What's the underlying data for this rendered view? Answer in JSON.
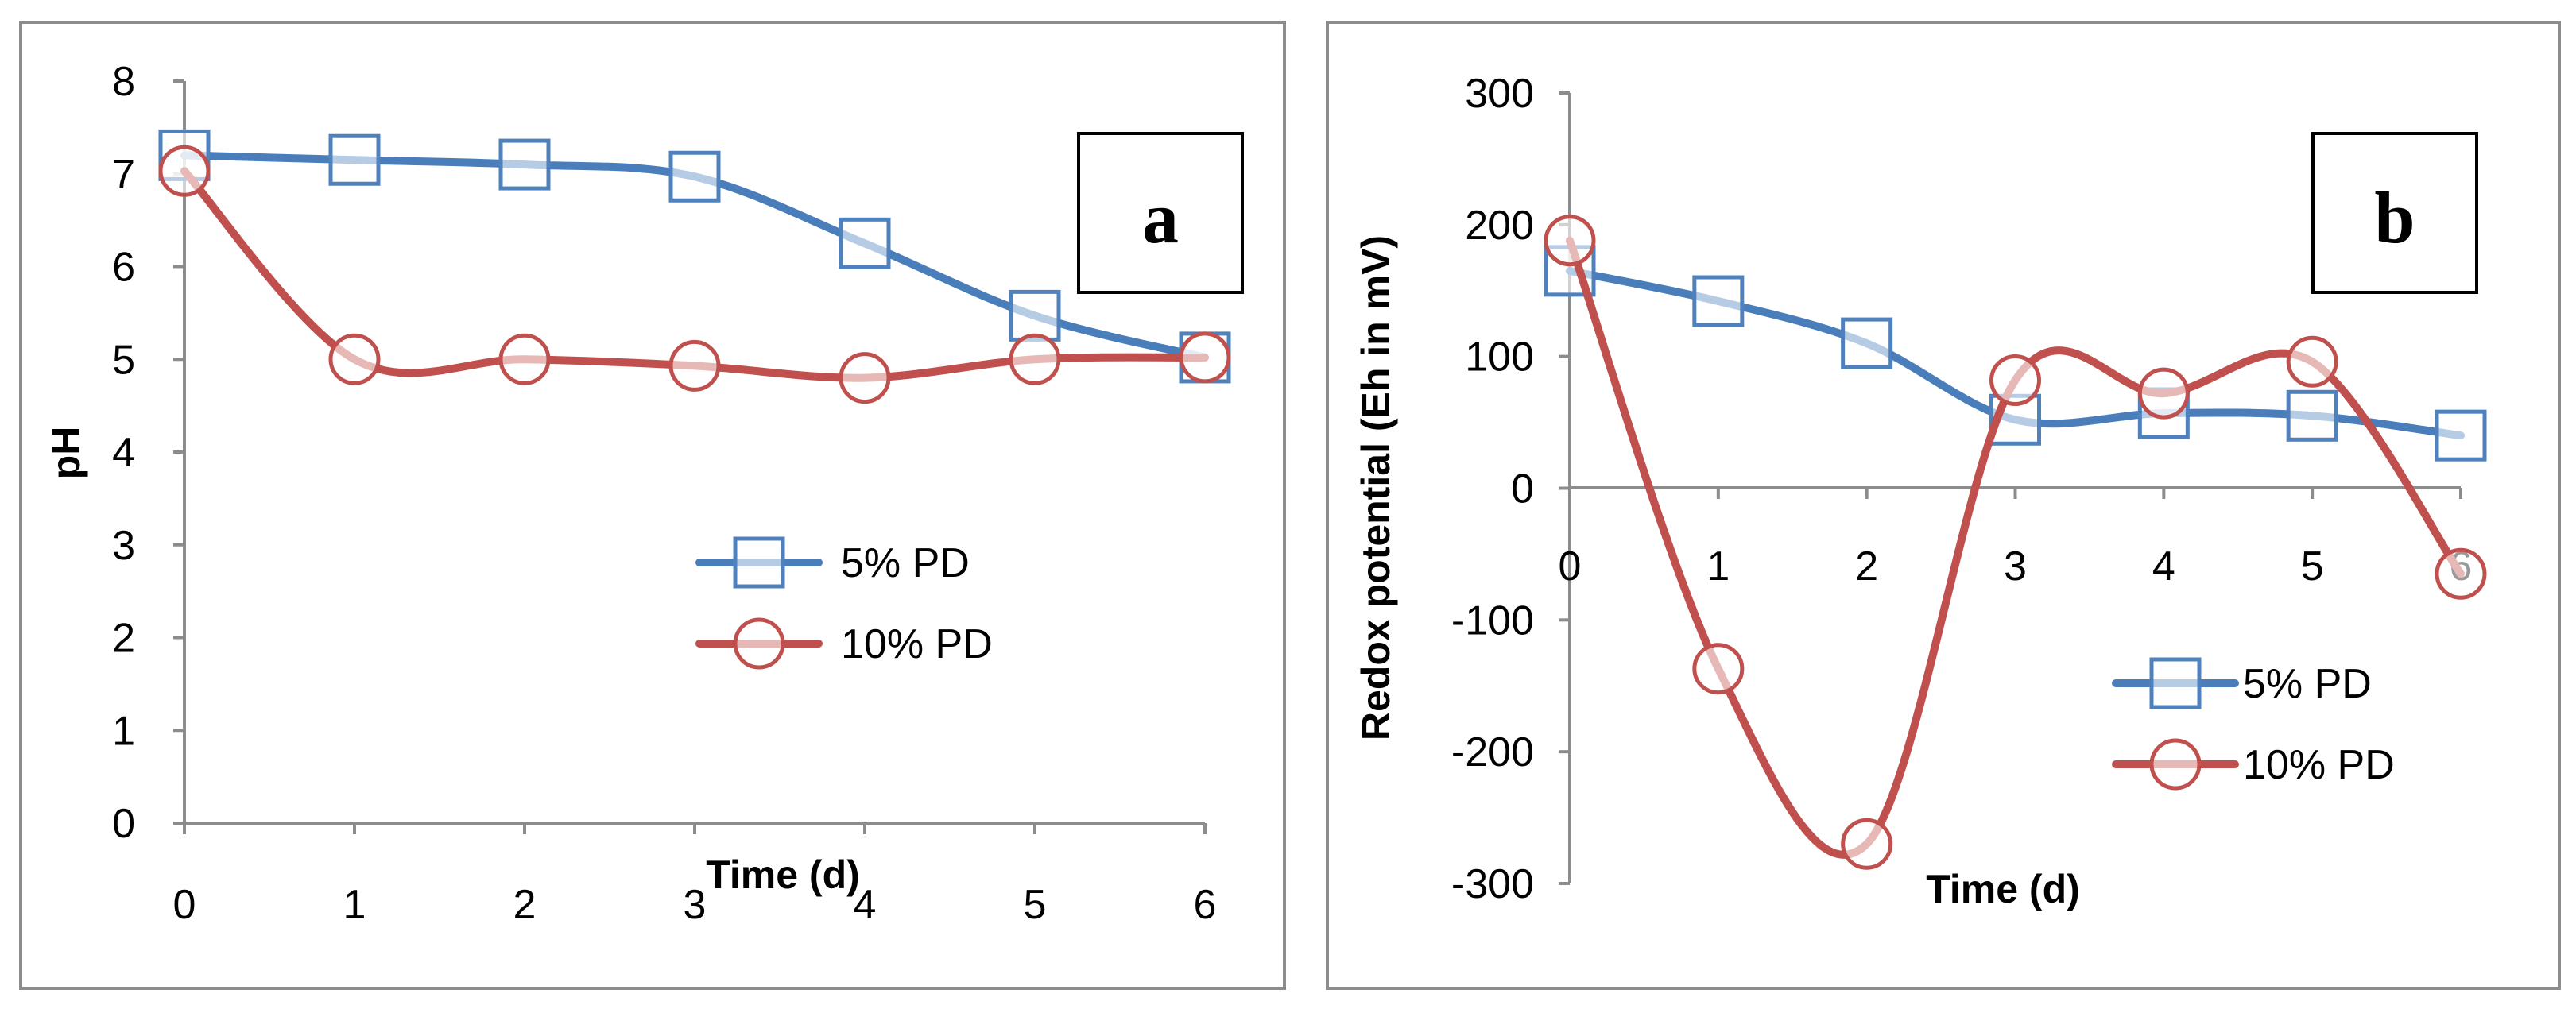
{
  "chart_data": [
    {
      "type": "line",
      "panel_tag": "a",
      "xlabel": "Time (d)",
      "ylabel": "pH",
      "x": [
        0,
        1,
        2,
        3,
        4,
        5,
        6
      ],
      "x_ticks": [
        "0",
        "1",
        "2",
        "3",
        "4",
        "5",
        "6"
      ],
      "y_ticks": [
        "0",
        "1",
        "2",
        "3",
        "4",
        "5",
        "6",
        "7",
        "8"
      ],
      "xlim": [
        0,
        6
      ],
      "ylim": [
        0,
        8
      ],
      "grid": false,
      "legend_position": "right",
      "series": [
        {
          "name": "5% PD",
          "marker": "square",
          "color": "#4a7ebb",
          "marker_color": "#4f81bd",
          "values": [
            7.2,
            7.15,
            7.1,
            6.97,
            6.25,
            5.47,
            5.02
          ]
        },
        {
          "name": "10% PD",
          "marker": "circle",
          "color": "#c0504d",
          "marker_color": "#c0504d",
          "values": [
            7.03,
            5.0,
            5.0,
            4.93,
            4.8,
            5.0,
            5.02
          ]
        }
      ]
    },
    {
      "type": "line",
      "panel_tag": "b",
      "xlabel": "Time (d)",
      "ylabel": "Redox potential (Eh in mV)",
      "x": [
        0,
        1,
        2,
        3,
        4,
        5,
        6
      ],
      "x_ticks": [
        "0",
        "1",
        "2",
        "3",
        "4",
        "5",
        "6"
      ],
      "y_ticks": [
        "-300",
        "-200",
        "-100",
        "0",
        "100",
        "200",
        "300"
      ],
      "xlim": [
        0,
        6
      ],
      "ylim": [
        -300,
        300
      ],
      "grid": false,
      "legend_position": "bottom-right",
      "series": [
        {
          "name": "5% PD",
          "marker": "square",
          "color": "#4a7ebb",
          "marker_color": "#4f81bd",
          "values": [
            165,
            142,
            110,
            52,
            57,
            55,
            40
          ]
        },
        {
          "name": "10% PD",
          "marker": "circle",
          "color": "#c0504d",
          "marker_color": "#c0504d",
          "values": [
            188,
            -137,
            -270,
            82,
            72,
            96,
            -65
          ]
        }
      ]
    }
  ]
}
